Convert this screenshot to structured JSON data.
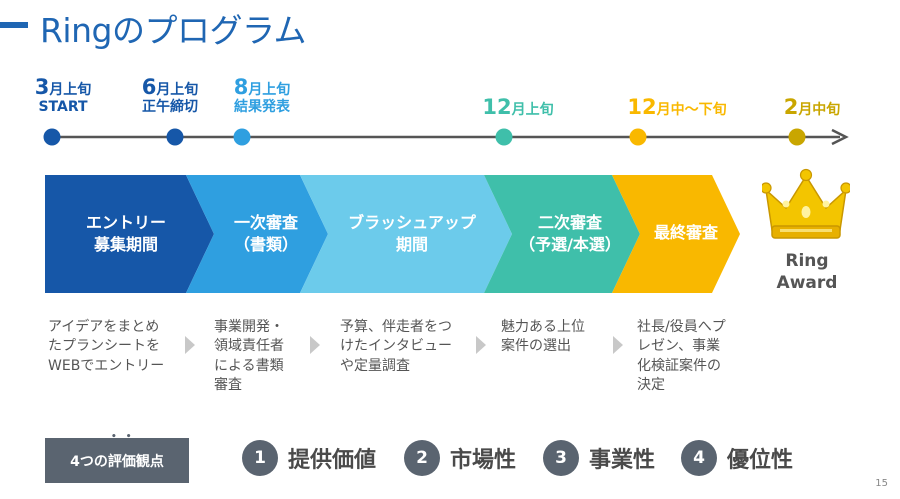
{
  "title": "Ringのプログラム",
  "colors": {
    "accent": "#1f66b3",
    "phase1": "#1657a8",
    "phase2": "#2f9fe0",
    "phase3": "#6ccbeb",
    "phase4": "#3fbfaa",
    "phase5": "#f9b800",
    "gold": "#c9a600",
    "timeline": "#555555"
  },
  "milestones": [
    {
      "num": "3",
      "unit": "月上旬",
      "sub": "START",
      "color": "#1657a8"
    },
    {
      "num": "6",
      "unit": "月上旬",
      "sub": "正午締切",
      "color": "#1657a8"
    },
    {
      "num": "8",
      "unit": "月上旬",
      "sub": "結果発表",
      "color": "#2f9fe0"
    },
    {
      "num": "12",
      "unit": "月上旬",
      "sub": "",
      "color": "#3fbfaa"
    },
    {
      "num": "12",
      "unit": "月中〜下旬",
      "sub": "",
      "color": "#f9b800"
    },
    {
      "num": "2",
      "unit": "月中旬",
      "sub": "",
      "color": "#c9a600"
    }
  ],
  "phases": [
    {
      "line1": "エントリー",
      "line2": "募集期間"
    },
    {
      "line1": "一次審査",
      "line2": "（書類）"
    },
    {
      "line1": "ブラッシュアップ",
      "line2": "期間"
    },
    {
      "line1": "二次審査",
      "line2": "（予選/本選）"
    },
    {
      "line1": "最終審査",
      "line2": ""
    }
  ],
  "award": "Ring\nAward",
  "award_icon": "crown-icon",
  "descriptions": [
    "アイデアをまとめ\nたプランシートを\nWEBでエントリー",
    "事業開発・\n領域責任者\nによる書類\n審査",
    "予算、伴走者をつ\nけたインタビュー\nや定量調査",
    "魅力ある上位\n案件の選出",
    "社長/役員へプ\nレゼン、事業\n化検証案件の\n決定"
  ],
  "evaluation": {
    "label": "4つの評価観点",
    "criteria": [
      {
        "num": "1",
        "label": "提供価値"
      },
      {
        "num": "2",
        "label": "市場性"
      },
      {
        "num": "3",
        "label": "事業性"
      },
      {
        "num": "4",
        "label": "優位性"
      }
    ]
  },
  "page_number": "15"
}
